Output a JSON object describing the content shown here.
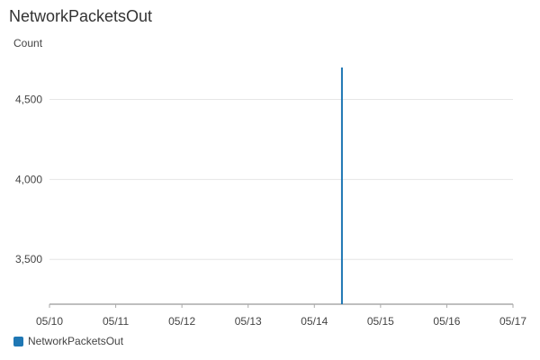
{
  "chart_data": {
    "type": "line",
    "title": "NetworkPacketsOut",
    "ylabel": "Count",
    "xlabel": "",
    "x_ticks": [
      "05/10",
      "05/11",
      "05/12",
      "05/13",
      "05/14",
      "05/15",
      "05/16",
      "05/17"
    ],
    "y_ticks": [
      3500,
      4000,
      4500
    ],
    "y_tick_labels": [
      "3,500",
      "4,000",
      "4,500"
    ],
    "xlim": [
      "05/10 00:00",
      "05/17 00:00"
    ],
    "ylim": [
      3220,
      4700
    ],
    "grid": "horizontal",
    "legend": "bottom-left",
    "series": [
      {
        "name": "NetworkPacketsOut",
        "color": "#1f77b4",
        "points": [
          {
            "x": "05/14 10:00",
            "y": 4700
          }
        ]
      }
    ]
  }
}
